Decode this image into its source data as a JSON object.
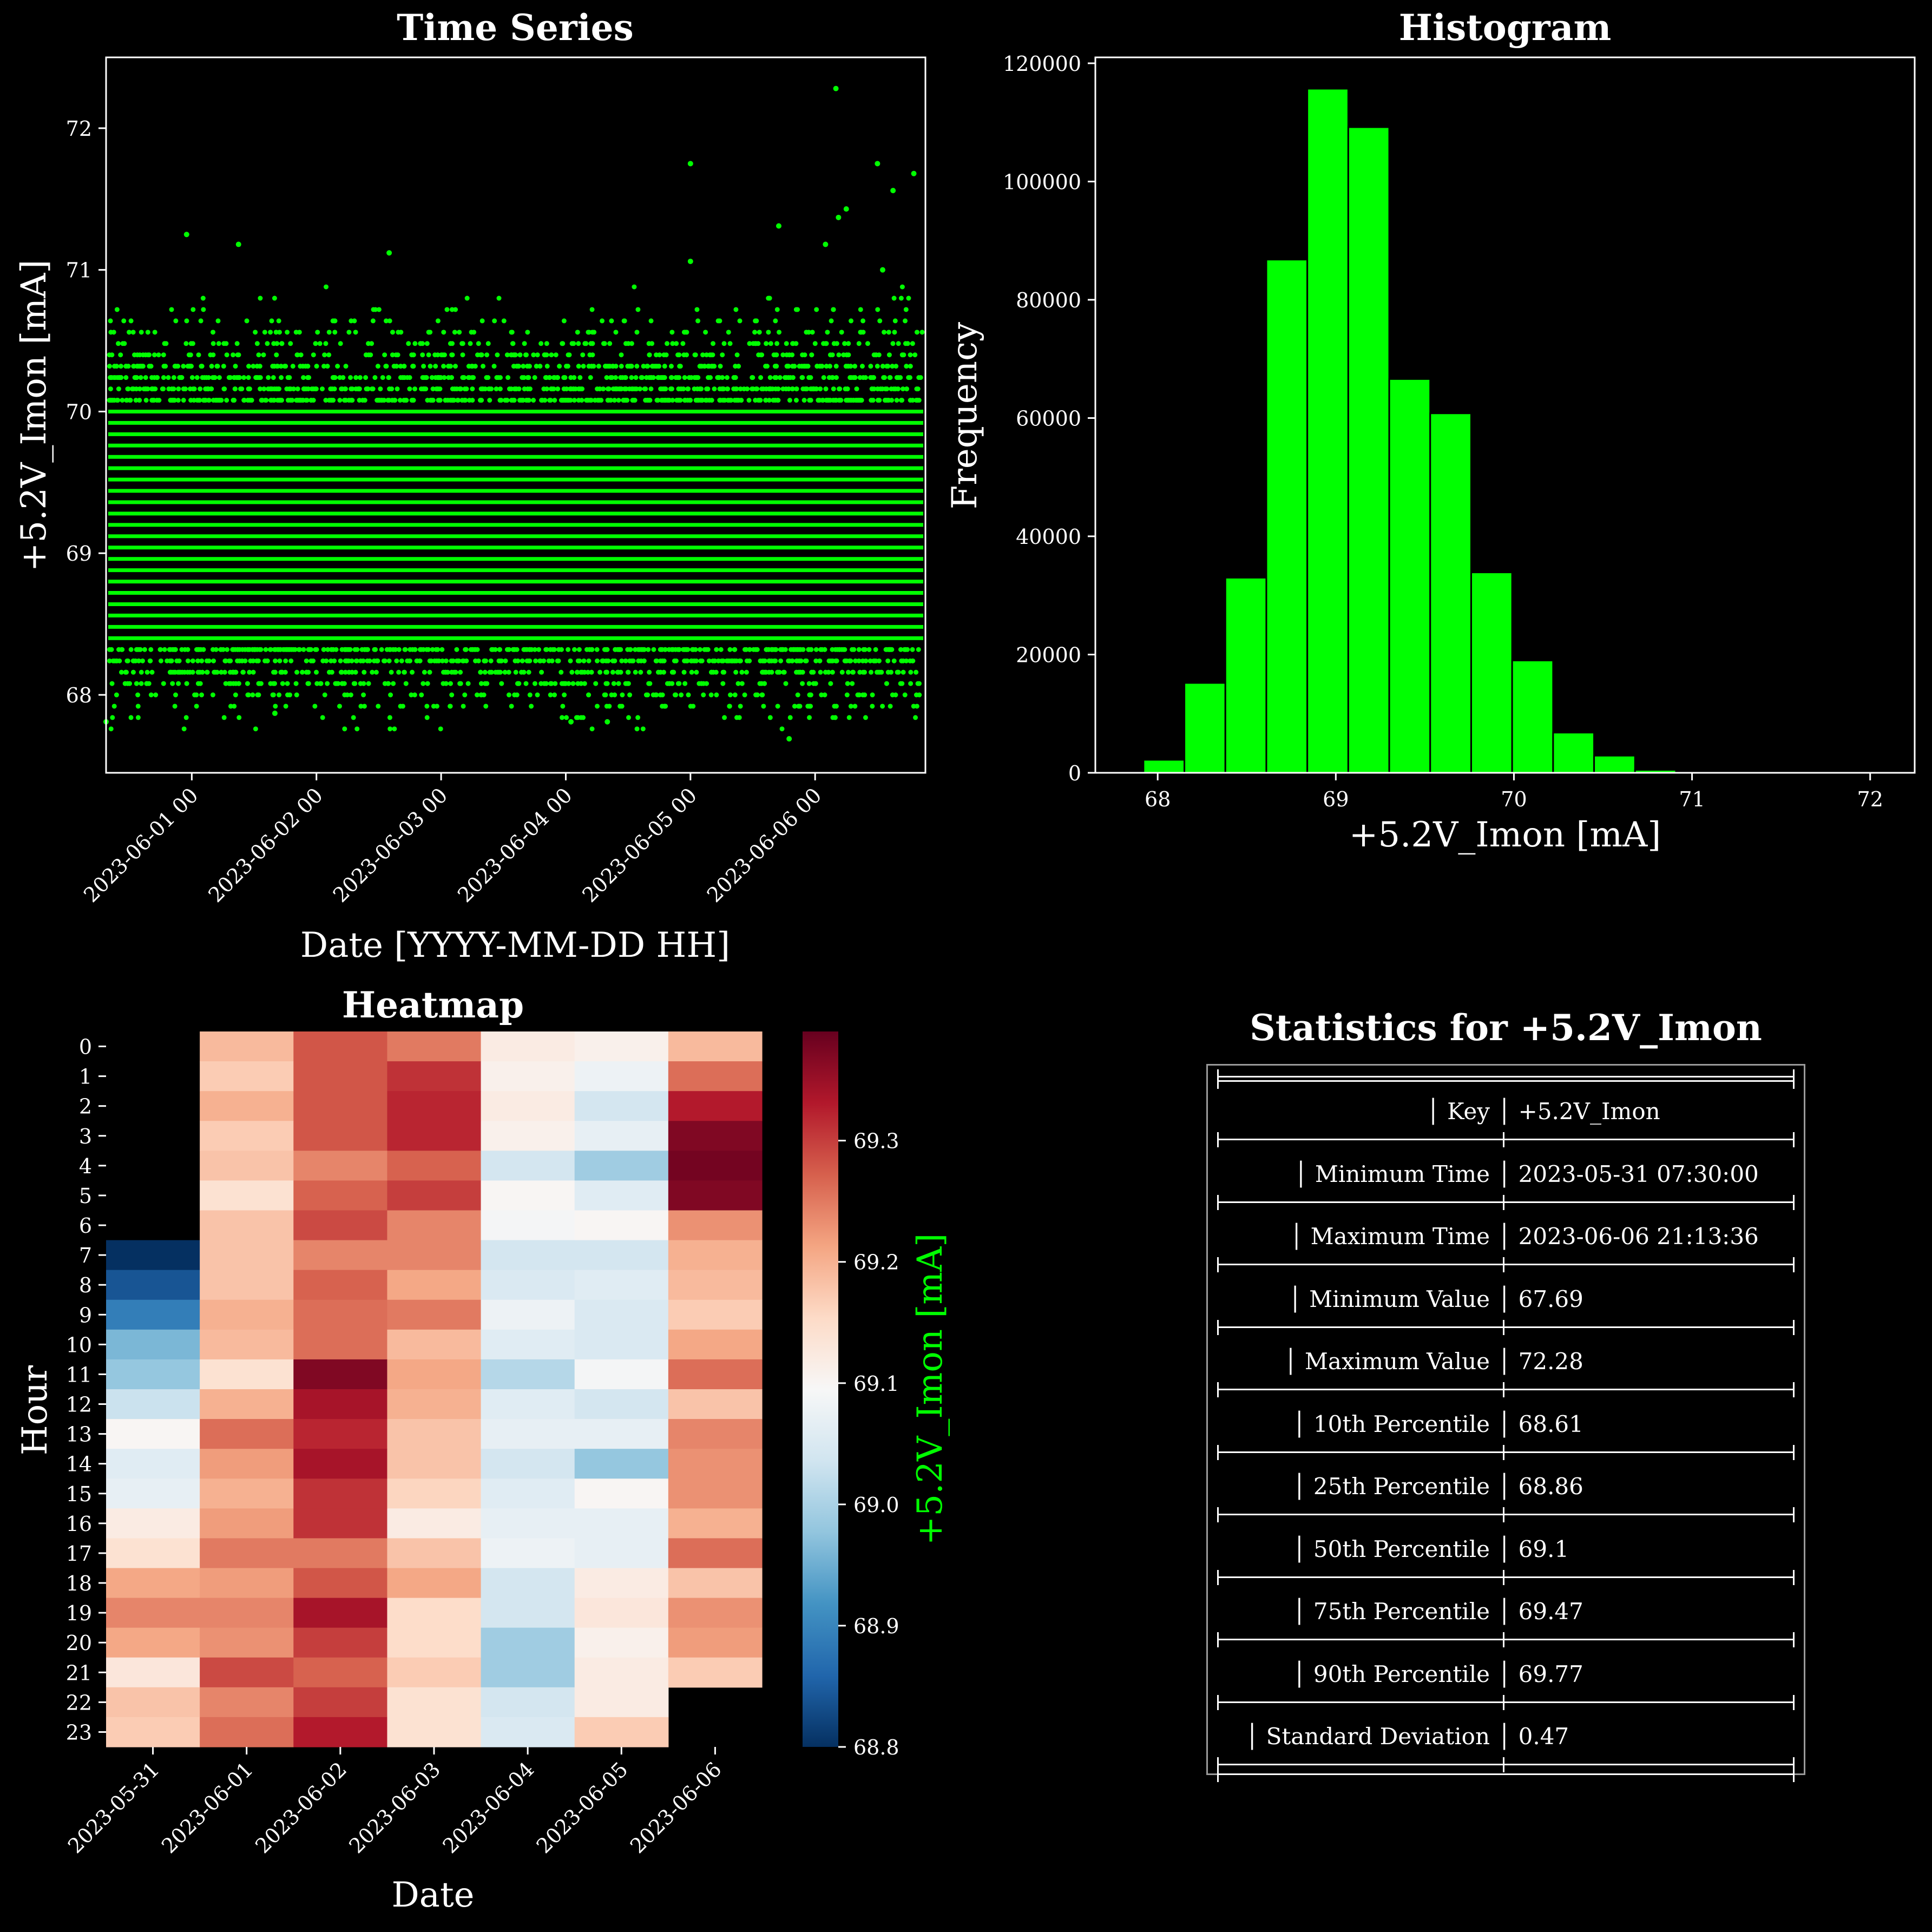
{
  "timeseries": {
    "title": "Time Series",
    "xlabel": "Date [YYYY-MM-DD HH]",
    "ylabel": "+5.2V_Imon [mA]",
    "x_ticks": [
      "2023-06-01 00",
      "2023-06-02 00",
      "2023-06-03 00",
      "2023-06-04 00",
      "2023-06-05 00",
      "2023-06-06 00"
    ],
    "y_ticks": [
      "68",
      "69",
      "70",
      "71",
      "72"
    ],
    "color": "#00ff00"
  },
  "histogram": {
    "title": "Histogram",
    "xlabel": "+5.2V_Imon [mA]",
    "ylabel": "Frequency",
    "x_ticks": [
      "68",
      "69",
      "70",
      "71",
      "72"
    ],
    "y_ticks": [
      "0",
      "20000",
      "40000",
      "60000",
      "80000",
      "100000",
      "120000"
    ],
    "color": "#00ff00"
  },
  "heatmap": {
    "title": "Heatmap",
    "xlabel": "Date",
    "ylabel": "Hour",
    "colorbar_label": "+5.2V_Imon [mA]",
    "colorbar_label_color": "#00ff00",
    "colorbar_ticks": [
      "68.8",
      "68.9",
      "69.0",
      "69.1",
      "69.2",
      "69.3"
    ],
    "dates": [
      "2023-05-31",
      "2023-06-01",
      "2023-06-02",
      "2023-06-03",
      "2023-06-04",
      "2023-06-05",
      "2023-06-06"
    ],
    "hours": [
      "0",
      "1",
      "2",
      "3",
      "4",
      "5",
      "6",
      "7",
      "8",
      "9",
      "10",
      "11",
      "12",
      "13",
      "14",
      "15",
      "16",
      "17",
      "18",
      "19",
      "20",
      "21",
      "22",
      "23"
    ]
  },
  "stats": {
    "title": "Statistics for +5.2V_Imon",
    "rows": [
      {
        "key": "Key",
        "value": "+5.2V_Imon"
      },
      {
        "key": "Minimum Time",
        "value": "2023-05-31 07:30:00"
      },
      {
        "key": "Maximum Time",
        "value": "2023-06-06 21:13:36"
      },
      {
        "key": "Minimum Value",
        "value": "67.69"
      },
      {
        "key": "Maximum Value",
        "value": "72.28"
      },
      {
        "key": "10th Percentile",
        "value": "68.61"
      },
      {
        "key": "25th Percentile",
        "value": "68.86"
      },
      {
        "key": "50th Percentile",
        "value": "69.1"
      },
      {
        "key": "75th Percentile",
        "value": "69.47"
      },
      {
        "key": "90th Percentile",
        "value": "69.77"
      },
      {
        "key": "Standard Deviation",
        "value": "0.47"
      }
    ]
  },
  "chart_data": [
    {
      "type": "scatter",
      "title": "Time Series",
      "xlabel": "Date [YYYY-MM-DD HH]",
      "ylabel": "+5.2V_Imon [mA]",
      "xlim": [
        "2023-05-31 07:30",
        "2023-06-06 21:14"
      ],
      "ylim": [
        67.45,
        72.5
      ],
      "band": {
        "dense_min": 68.4,
        "dense_max": 70.0,
        "sparse_min": 67.7,
        "sparse_max": 70.9,
        "quantization": 0.08
      },
      "outliers": [
        {
          "x": "2023-06-05 00:00",
          "y": 71.75
        },
        {
          "x": "2023-06-05 00:00",
          "y": 71.06
        },
        {
          "x": "2023-06-06 04:00",
          "y": 72.28
        },
        {
          "x": "2023-06-06 12:00",
          "y": 71.75
        },
        {
          "x": "2023-06-06 15:00",
          "y": 71.56
        },
        {
          "x": "2023-06-06 19:00",
          "y": 71.68
        },
        {
          "x": "2023-05-31 23:00",
          "y": 71.25
        },
        {
          "x": "2023-06-01 09:00",
          "y": 71.18
        },
        {
          "x": "2023-06-02 14:00",
          "y": 71.12
        },
        {
          "x": "2023-06-05 17:00",
          "y": 71.31
        },
        {
          "x": "2023-06-06 04:30",
          "y": 71.37
        },
        {
          "x": "2023-06-06 06:00",
          "y": 71.43
        },
        {
          "x": "2023-06-06 02:00",
          "y": 71.18
        },
        {
          "x": "2023-06-06 13:00",
          "y": 71.0
        },
        {
          "x": "2023-06-05 19:00",
          "y": 67.69
        },
        {
          "x": "2023-06-01 16:00",
          "y": 67.87
        },
        {
          "x": "2023-05-31 07:30",
          "y": 67.81
        },
        {
          "x": "2023-06-04 01:00",
          "y": 67.81
        },
        {
          "x": "2023-06-04 08:00",
          "y": 67.81
        }
      ]
    },
    {
      "type": "bar",
      "title": "Histogram",
      "xlabel": "+5.2V_Imon [mA]",
      "ylabel": "Frequency",
      "xlim": [
        67.65,
        72.25
      ],
      "ylim": [
        0,
        121000
      ],
      "bin_edges": [
        67.92,
        68.15,
        68.38,
        68.61,
        68.84,
        69.07,
        69.3,
        69.53,
        69.76,
        69.99,
        70.22,
        70.45,
        70.68,
        70.91,
        71.14,
        71.37,
        71.6,
        71.83,
        72.06
      ],
      "values": [
        2200,
        15200,
        33000,
        86800,
        115700,
        109200,
        66600,
        60800,
        33900,
        19000,
        6800,
        2900,
        500,
        100,
        40,
        20,
        10,
        5
      ]
    },
    {
      "type": "heatmap",
      "title": "Heatmap",
      "xlabel": "Date",
      "ylabel": "Hour",
      "colorbar_label": "+5.2V_Imon [mA]",
      "vmin": 68.8,
      "vmax": 69.39,
      "x": [
        "2023-05-31",
        "2023-06-01",
        "2023-06-02",
        "2023-06-03",
        "2023-06-04",
        "2023-06-05",
        "2023-06-06"
      ],
      "y": [
        0,
        1,
        2,
        3,
        4,
        5,
        6,
        7,
        8,
        9,
        10,
        11,
        12,
        13,
        14,
        15,
        16,
        17,
        18,
        19,
        20,
        21,
        22,
        23
      ],
      "values": [
        [
          null,
          69.19,
          69.28,
          69.25,
          69.12,
          69.11,
          69.19
        ],
        [
          null,
          69.17,
          69.28,
          69.31,
          69.11,
          69.08,
          69.26
        ],
        [
          null,
          69.2,
          69.28,
          69.32,
          69.12,
          69.04,
          69.33
        ],
        [
          null,
          69.17,
          69.28,
          69.32,
          69.11,
          69.07,
          69.37
        ],
        [
          null,
          69.18,
          69.24,
          69.27,
          69.04,
          68.99,
          69.38
        ],
        [
          null,
          69.14,
          69.27,
          69.3,
          69.1,
          69.06,
          69.37
        ],
        [
          null,
          69.18,
          69.29,
          69.24,
          69.09,
          69.1,
          69.23
        ],
        [
          68.8,
          69.18,
          69.24,
          69.24,
          69.04,
          69.04,
          69.2
        ],
        [
          68.84,
          69.18,
          69.27,
          69.21,
          69.05,
          69.06,
          69.19
        ],
        [
          68.89,
          69.2,
          69.26,
          69.25,
          69.08,
          69.05,
          69.17
        ],
        [
          68.96,
          69.19,
          69.26,
          69.19,
          69.06,
          69.05,
          69.21
        ],
        [
          68.98,
          69.14,
          69.37,
          69.21,
          69.01,
          69.09,
          69.26
        ],
        [
          69.03,
          69.2,
          69.34,
          69.2,
          69.06,
          69.04,
          69.18
        ],
        [
          69.1,
          69.26,
          69.32,
          69.18,
          69.07,
          69.07,
          69.24
        ],
        [
          69.06,
          69.22,
          69.34,
          69.18,
          69.04,
          68.98,
          69.23
        ],
        [
          69.07,
          69.2,
          69.31,
          69.16,
          69.06,
          69.1,
          69.23
        ],
        [
          69.12,
          69.22,
          69.31,
          69.12,
          69.07,
          69.07,
          69.2
        ],
        [
          69.14,
          69.25,
          69.25,
          69.18,
          69.08,
          69.07,
          69.26
        ],
        [
          69.21,
          69.22,
          69.28,
          69.21,
          69.04,
          69.12,
          69.18
        ],
        [
          69.24,
          69.24,
          69.34,
          69.15,
          69.04,
          69.13,
          69.23
        ],
        [
          69.21,
          69.23,
          69.3,
          69.15,
          68.99,
          69.11,
          69.22
        ],
        [
          69.13,
          69.29,
          69.27,
          69.17,
          68.99,
          69.12,
          69.17
        ],
        [
          69.18,
          69.24,
          69.3,
          69.14,
          69.04,
          69.12,
          null
        ],
        [
          69.17,
          69.26,
          69.33,
          69.14,
          69.05,
          69.17,
          null
        ]
      ]
    }
  ]
}
